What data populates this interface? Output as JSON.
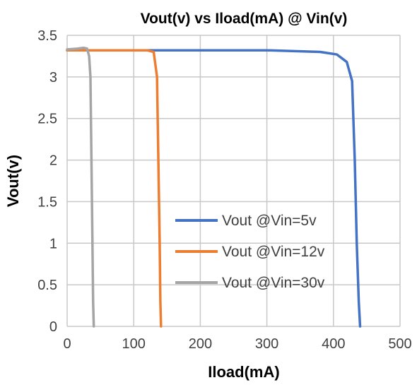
{
  "chart_data": {
    "type": "line",
    "title": "Vout(v) vs Iload(mA) @ Vin(v)",
    "xlabel": "Iload(mA)",
    "ylabel": "Vout(v)",
    "xlim": [
      0,
      500
    ],
    "ylim": [
      0,
      3.5
    ],
    "xticks": [
      "0",
      "100",
      "200",
      "300",
      "400",
      "500"
    ],
    "yticks": [
      "0",
      "0.5",
      "1",
      "1.5",
      "2",
      "2.5",
      "3",
      "3.5"
    ],
    "grid": true,
    "legend_position": "center-right",
    "series": [
      {
        "name": "Vout @Vin=5v",
        "color": "#4472C4",
        "x": [
          0,
          100,
          200,
          300,
          380,
          405,
          420,
          428,
          432,
          435,
          438,
          440
        ],
        "y": [
          3.32,
          3.32,
          3.32,
          3.32,
          3.3,
          3.27,
          3.18,
          2.95,
          2.0,
          1.0,
          0.3,
          0
        ]
      },
      {
        "name": "Vout @Vin=12v",
        "color": "#ED7D31",
        "x": [
          0,
          60,
          120,
          130,
          135,
          137,
          139,
          140,
          141
        ],
        "y": [
          3.32,
          3.32,
          3.32,
          3.3,
          3.0,
          2.0,
          1.0,
          0.3,
          0
        ]
      },
      {
        "name": "Vout @Vin=30v",
        "color": "#A5A5A5",
        "x": [
          0,
          15,
          25,
          30,
          33,
          35,
          36.5,
          38,
          39,
          40
        ],
        "y": [
          3.33,
          3.34,
          3.35,
          3.34,
          3.25,
          3.0,
          2.0,
          1.0,
          0.3,
          0
        ]
      }
    ]
  }
}
